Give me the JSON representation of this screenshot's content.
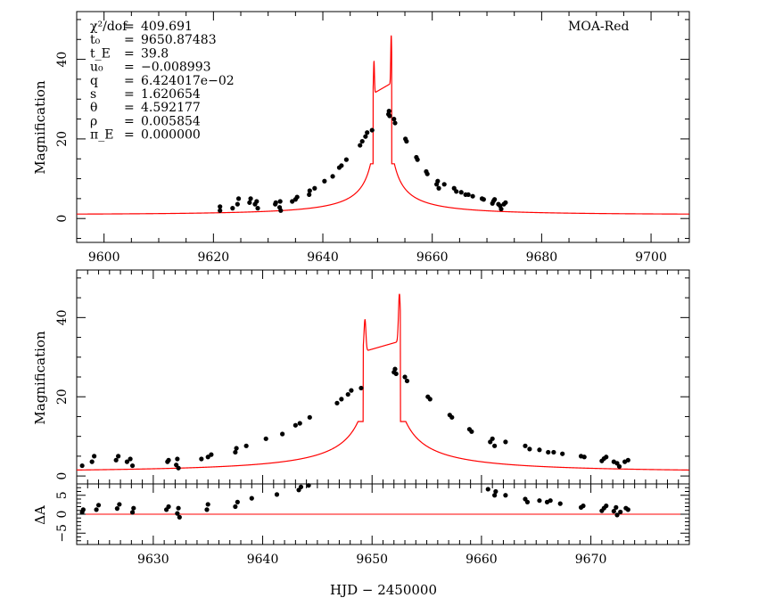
{
  "chart_data": [
    {
      "type": "scatter",
      "id": "top",
      "ylabel": "Magnification",
      "xlim": [
        9595,
        9707
      ],
      "ylim": [
        -6,
        52
      ],
      "xticks": [
        9600,
        9620,
        9640,
        9660,
        9680,
        9700
      ],
      "yticks": [
        0,
        20,
        40
      ],
      "label": "MOA-Red",
      "params": [
        {
          "sym": "χ²/dof",
          "eq": "=",
          "val": "409.691"
        },
        {
          "sym": "t₀",
          "eq": "=",
          "val": "9650.87483"
        },
        {
          "sym": "t_E",
          "eq": "=",
          "val": "39.8"
        },
        {
          "sym": "u₀",
          "eq": "=",
          "val": "−0.008993"
        },
        {
          "sym": "q",
          "eq": "=",
          "val": "6.424017e−02"
        },
        {
          "sym": "s",
          "eq": "=",
          "val": "1.620654"
        },
        {
          "sym": "θ",
          "eq": "=",
          "val": "4.592177"
        },
        {
          "sym": "ρ",
          "eq": "=",
          "val": "0.005854"
        },
        {
          "sym": "π_E",
          "eq": "=",
          "val": "0.000000"
        }
      ],
      "series": [
        {
          "kind": "model",
          "color": "#ff0000"
        },
        {
          "kind": "data",
          "color": "#000000",
          "points": [
            [
              9621.2,
              2.0
            ],
            [
              9621.2,
              3.0
            ],
            [
              9623.5,
              2.6
            ],
            [
              9624.4,
              3.6
            ],
            [
              9624.6,
              5.0
            ],
            [
              9626.6,
              4.0
            ],
            [
              9626.8,
              5.0
            ],
            [
              9627.6,
              3.6
            ],
            [
              9627.9,
              4.3
            ],
            [
              9628.1,
              2.6
            ],
            [
              9631.3,
              3.6
            ],
            [
              9631.4,
              4.0
            ],
            [
              9632.1,
              2.8
            ],
            [
              9632.2,
              4.3
            ],
            [
              9632.3,
              2.0
            ],
            [
              9634.4,
              4.3
            ],
            [
              9635.0,
              4.8
            ],
            [
              9635.3,
              5.4
            ],
            [
              9637.5,
              6.0
            ],
            [
              9637.6,
              7.0
            ],
            [
              9638.5,
              7.6
            ],
            [
              9640.3,
              9.4
            ],
            [
              9641.8,
              10.6
            ],
            [
              9643.0,
              12.8
            ],
            [
              9643.4,
              13.3
            ],
            [
              9644.3,
              14.8
            ],
            [
              9646.8,
              18.4
            ],
            [
              9647.2,
              19.4
            ],
            [
              9647.8,
              20.6
            ],
            [
              9648.1,
              21.6
            ],
            [
              9649.0,
              22.2
            ],
            [
              9652.0,
              26.2
            ],
            [
              9652.1,
              27.0
            ],
            [
              9652.2,
              25.8
            ],
            [
              9653.0,
              25.0
            ],
            [
              9653.2,
              24.0
            ],
            [
              9655.1,
              20.0
            ],
            [
              9655.3,
              19.4
            ],
            [
              9657.1,
              15.4
            ],
            [
              9657.3,
              14.8
            ],
            [
              9658.9,
              11.8
            ],
            [
              9659.1,
              11.2
            ],
            [
              9660.8,
              8.6
            ],
            [
              9661.0,
              9.4
            ],
            [
              9661.2,
              7.6
            ],
            [
              9662.2,
              8.6
            ],
            [
              9664.0,
              7.6
            ],
            [
              9664.4,
              6.8
            ],
            [
              9665.3,
              6.6
            ],
            [
              9666.1,
              6.0
            ],
            [
              9666.6,
              6.0
            ],
            [
              9667.4,
              5.6
            ],
            [
              9669.1,
              5.0
            ],
            [
              9669.4,
              4.8
            ],
            [
              9671.0,
              3.8
            ],
            [
              9671.2,
              4.4
            ],
            [
              9671.4,
              4.8
            ],
            [
              9672.1,
              3.6
            ],
            [
              9672.4,
              3.2
            ],
            [
              9672.6,
              2.4
            ],
            [
              9673.1,
              3.6
            ],
            [
              9673.4,
              4.0
            ]
          ]
        }
      ]
    },
    {
      "type": "scatter",
      "id": "bottom",
      "ylabel": "Magnification",
      "xlim": [
        9623,
        9679
      ],
      "ylim": [
        -2,
        52
      ],
      "yticks": [
        0,
        20,
        40
      ],
      "series": [
        {
          "kind": "model",
          "color": "#ff0000"
        },
        {
          "kind": "data",
          "color": "#000000",
          "ref": "top"
        }
      ]
    },
    {
      "type": "scatter",
      "id": "residual",
      "ylabel": "ΔA",
      "xlabel": "HJD − 2450000",
      "xlim": [
        9623,
        9679
      ],
      "ylim": [
        -8,
        8
      ],
      "xticks": [
        9630,
        9640,
        9650,
        9660,
        9670
      ],
      "yticks": [
        -5,
        0,
        5
      ],
      "ytick_labels": [
        "−5",
        "0",
        "5"
      ],
      "series": [
        {
          "kind": "zero-line",
          "color": "#ff0000"
        },
        {
          "kind": "data",
          "color": "#000000",
          "points": [
            [
              9623.5,
              0.5
            ],
            [
              9623.6,
              1.2
            ],
            [
              9624.8,
              1.2
            ],
            [
              9625.0,
              2.4
            ],
            [
              9626.7,
              1.5
            ],
            [
              9626.9,
              2.6
            ],
            [
              9628.1,
              0.5
            ],
            [
              9628.2,
              1.6
            ],
            [
              9631.2,
              1.2
            ],
            [
              9631.4,
              2.0
            ],
            [
              9632.2,
              0.2
            ],
            [
              9632.3,
              1.6
            ],
            [
              9632.4,
              -0.8
            ],
            [
              9634.9,
              1.2
            ],
            [
              9635.0,
              2.6
            ],
            [
              9637.5,
              2.0
            ],
            [
              9637.7,
              3.2
            ],
            [
              9639.0,
              4.2
            ],
            [
              9641.3,
              5.2
            ],
            [
              9643.3,
              6.4
            ],
            [
              9643.5,
              7.2
            ],
            [
              9644.2,
              7.6
            ],
            [
              9660.6,
              6.6
            ],
            [
              9661.2,
              5.0
            ],
            [
              9661.3,
              6.0
            ],
            [
              9662.2,
              5.0
            ],
            [
              9664.0,
              4.0
            ],
            [
              9664.2,
              3.2
            ],
            [
              9665.3,
              3.6
            ],
            [
              9666.0,
              3.2
            ],
            [
              9666.3,
              3.6
            ],
            [
              9667.2,
              2.8
            ],
            [
              9669.1,
              1.8
            ],
            [
              9669.3,
              2.2
            ],
            [
              9671.0,
              0.9
            ],
            [
              9671.2,
              1.6
            ],
            [
              9671.4,
              2.2
            ],
            [
              9672.1,
              0.8
            ],
            [
              9672.3,
              1.8
            ],
            [
              9672.4,
              -0.2
            ],
            [
              9672.7,
              0.6
            ],
            [
              9673.2,
              1.6
            ],
            [
              9673.4,
              1.2
            ]
          ]
        }
      ]
    }
  ]
}
